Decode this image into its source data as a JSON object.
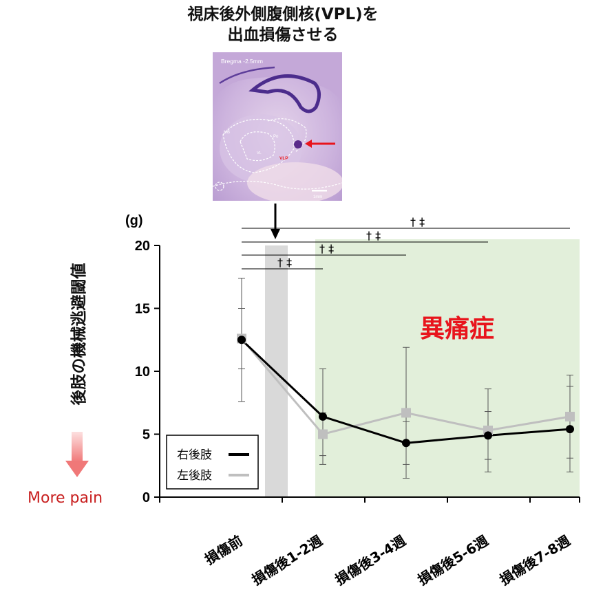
{
  "title_lines": [
    "視床後外側腹側核(VPL)を",
    "出血損傷させる"
  ],
  "histology": {
    "bregma_label": "Bregma -2.5mm",
    "region_labels": [
      "MB",
      "Po",
      "VLP",
      "VL"
    ],
    "scale_label": "1mm"
  },
  "colors": {
    "right_series": "#000000",
    "left_series": "#bfbfbf",
    "injury_band": "#d9d9d9",
    "pain_region": "#e2efda",
    "pain_text": "#e8141c",
    "lesion_arrow": "#e8141c",
    "more_pain": "#c81e1e"
  },
  "annotations": {
    "pain_region_label": "異痛症",
    "more_pain": "More pain",
    "significance_marks": "† ‡"
  },
  "chart_data": {
    "type": "line",
    "title": "",
    "ylabel": "後肢の機械逃避閾値",
    "yunit": "(g)",
    "xlabel": "",
    "ylim": [
      0,
      20
    ],
    "yticks": [
      0,
      5,
      10,
      15,
      20
    ],
    "categories": [
      "損傷前",
      "損傷後1-2週",
      "損傷後3-4週",
      "損傷後5-6週",
      "損傷後7-8週"
    ],
    "series": [
      {
        "name": "右後肢",
        "values": [
          12.5,
          6.4,
          4.3,
          4.9,
          5.4
        ],
        "error": [
          4.9,
          3.8,
          1.7,
          1.9,
          3.4
        ],
        "color": "#000000"
      },
      {
        "name": "左後肢",
        "values": [
          12.6,
          5.0,
          6.7,
          5.3,
          6.4
        ],
        "error": [
          2.4,
          1.7,
          5.2,
          3.3,
          3.3
        ],
        "color": "#bfbfbf"
      }
    ],
    "shaded_regions": [
      {
        "label": "",
        "x_from": "損傷前",
        "x_to": "損傷後1-2週"
      },
      {
        "label": "異痛症",
        "x_from": "損傷後1-2週",
        "x_to": "損傷後7-8週"
      }
    ],
    "significance": [
      {
        "from": "損傷前",
        "to": "損傷後1-2週",
        "marks": "† ‡"
      },
      {
        "from": "損傷前",
        "to": "損傷後3-4週",
        "marks": "† ‡"
      },
      {
        "from": "損傷前",
        "to": "損傷後5-6週",
        "marks": "† ‡"
      },
      {
        "from": "損傷前",
        "to": "損傷後7-8週",
        "marks": "† ‡"
      }
    ],
    "legend": "bottom-left",
    "grid": false
  }
}
